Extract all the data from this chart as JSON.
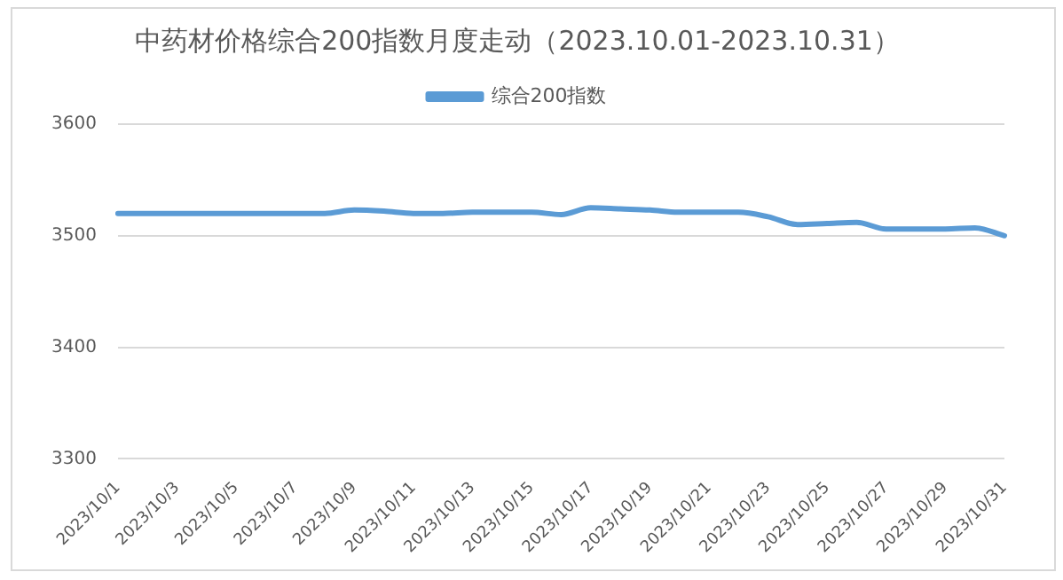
{
  "chart_data": {
    "type": "line",
    "title": "中药材价格综合200指数月度走动（2023.10.01-2023.10.31）",
    "categories": [
      "2023/10/1",
      null,
      "2023/10/3",
      null,
      "2023/10/5",
      null,
      "2023/10/7",
      null,
      "2023/10/9",
      null,
      "2023/10/11",
      null,
      "2023/10/13",
      null,
      "2023/10/15",
      null,
      "2023/10/17",
      null,
      "2023/10/19",
      null,
      "2023/10/21",
      null,
      "2023/10/23",
      null,
      "2023/10/25",
      null,
      "2023/10/27",
      null,
      "2023/10/29",
      null,
      "2023/10/31"
    ],
    "series": [
      {
        "name": "综合200指数",
        "color": "#5b9bd5",
        "values": [
          3520,
          3520,
          3520,
          3520,
          3520,
          3520,
          3520,
          3520,
          3523,
          3522,
          3520,
          3520,
          3521,
          3521,
          3521,
          3519,
          3525,
          3524,
          3523,
          3521,
          3521,
          3521,
          3517,
          3510,
          3511,
          3512,
          3506,
          3506,
          3506,
          3507,
          3500
        ]
      }
    ],
    "ylim": [
      3300,
      3600
    ],
    "yticks": [
      3300,
      3400,
      3500,
      3600
    ],
    "grid": "y",
    "legend": "top",
    "marker": "none",
    "line_style": "solid"
  }
}
